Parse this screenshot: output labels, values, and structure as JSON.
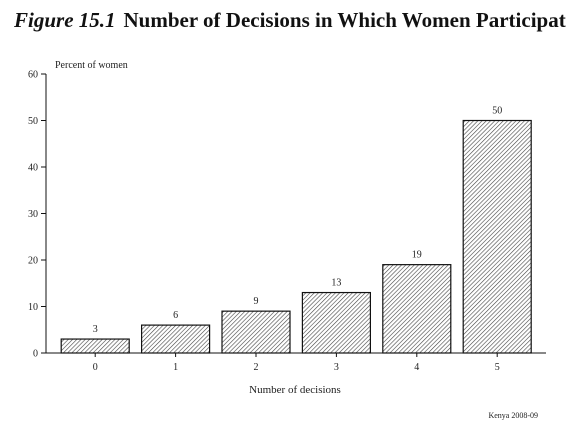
{
  "figure_label": "Figure 15.1",
  "title": "Number of Decisions in Which Women Participate",
  "source_note": "Kenya 2008-09",
  "chart_data": {
    "type": "bar",
    "title": "Number of Decisions in Which Women Participate",
    "xlabel": "Number of decisions",
    "ylabel": "Percent of women",
    "categories": [
      "0",
      "1",
      "2",
      "3",
      "4",
      "5"
    ],
    "values": [
      3,
      6,
      9,
      13,
      19,
      50
    ],
    "ylim": [
      0,
      60
    ],
    "yticks": [
      0,
      10,
      20,
      30,
      40,
      50,
      60
    ],
    "grid": false,
    "data_labels": true,
    "bar_fill": "diagonal hatch",
    "colors": {
      "bar_outline": "#111111",
      "hatch": "#444444",
      "axis": "#111111"
    }
  }
}
